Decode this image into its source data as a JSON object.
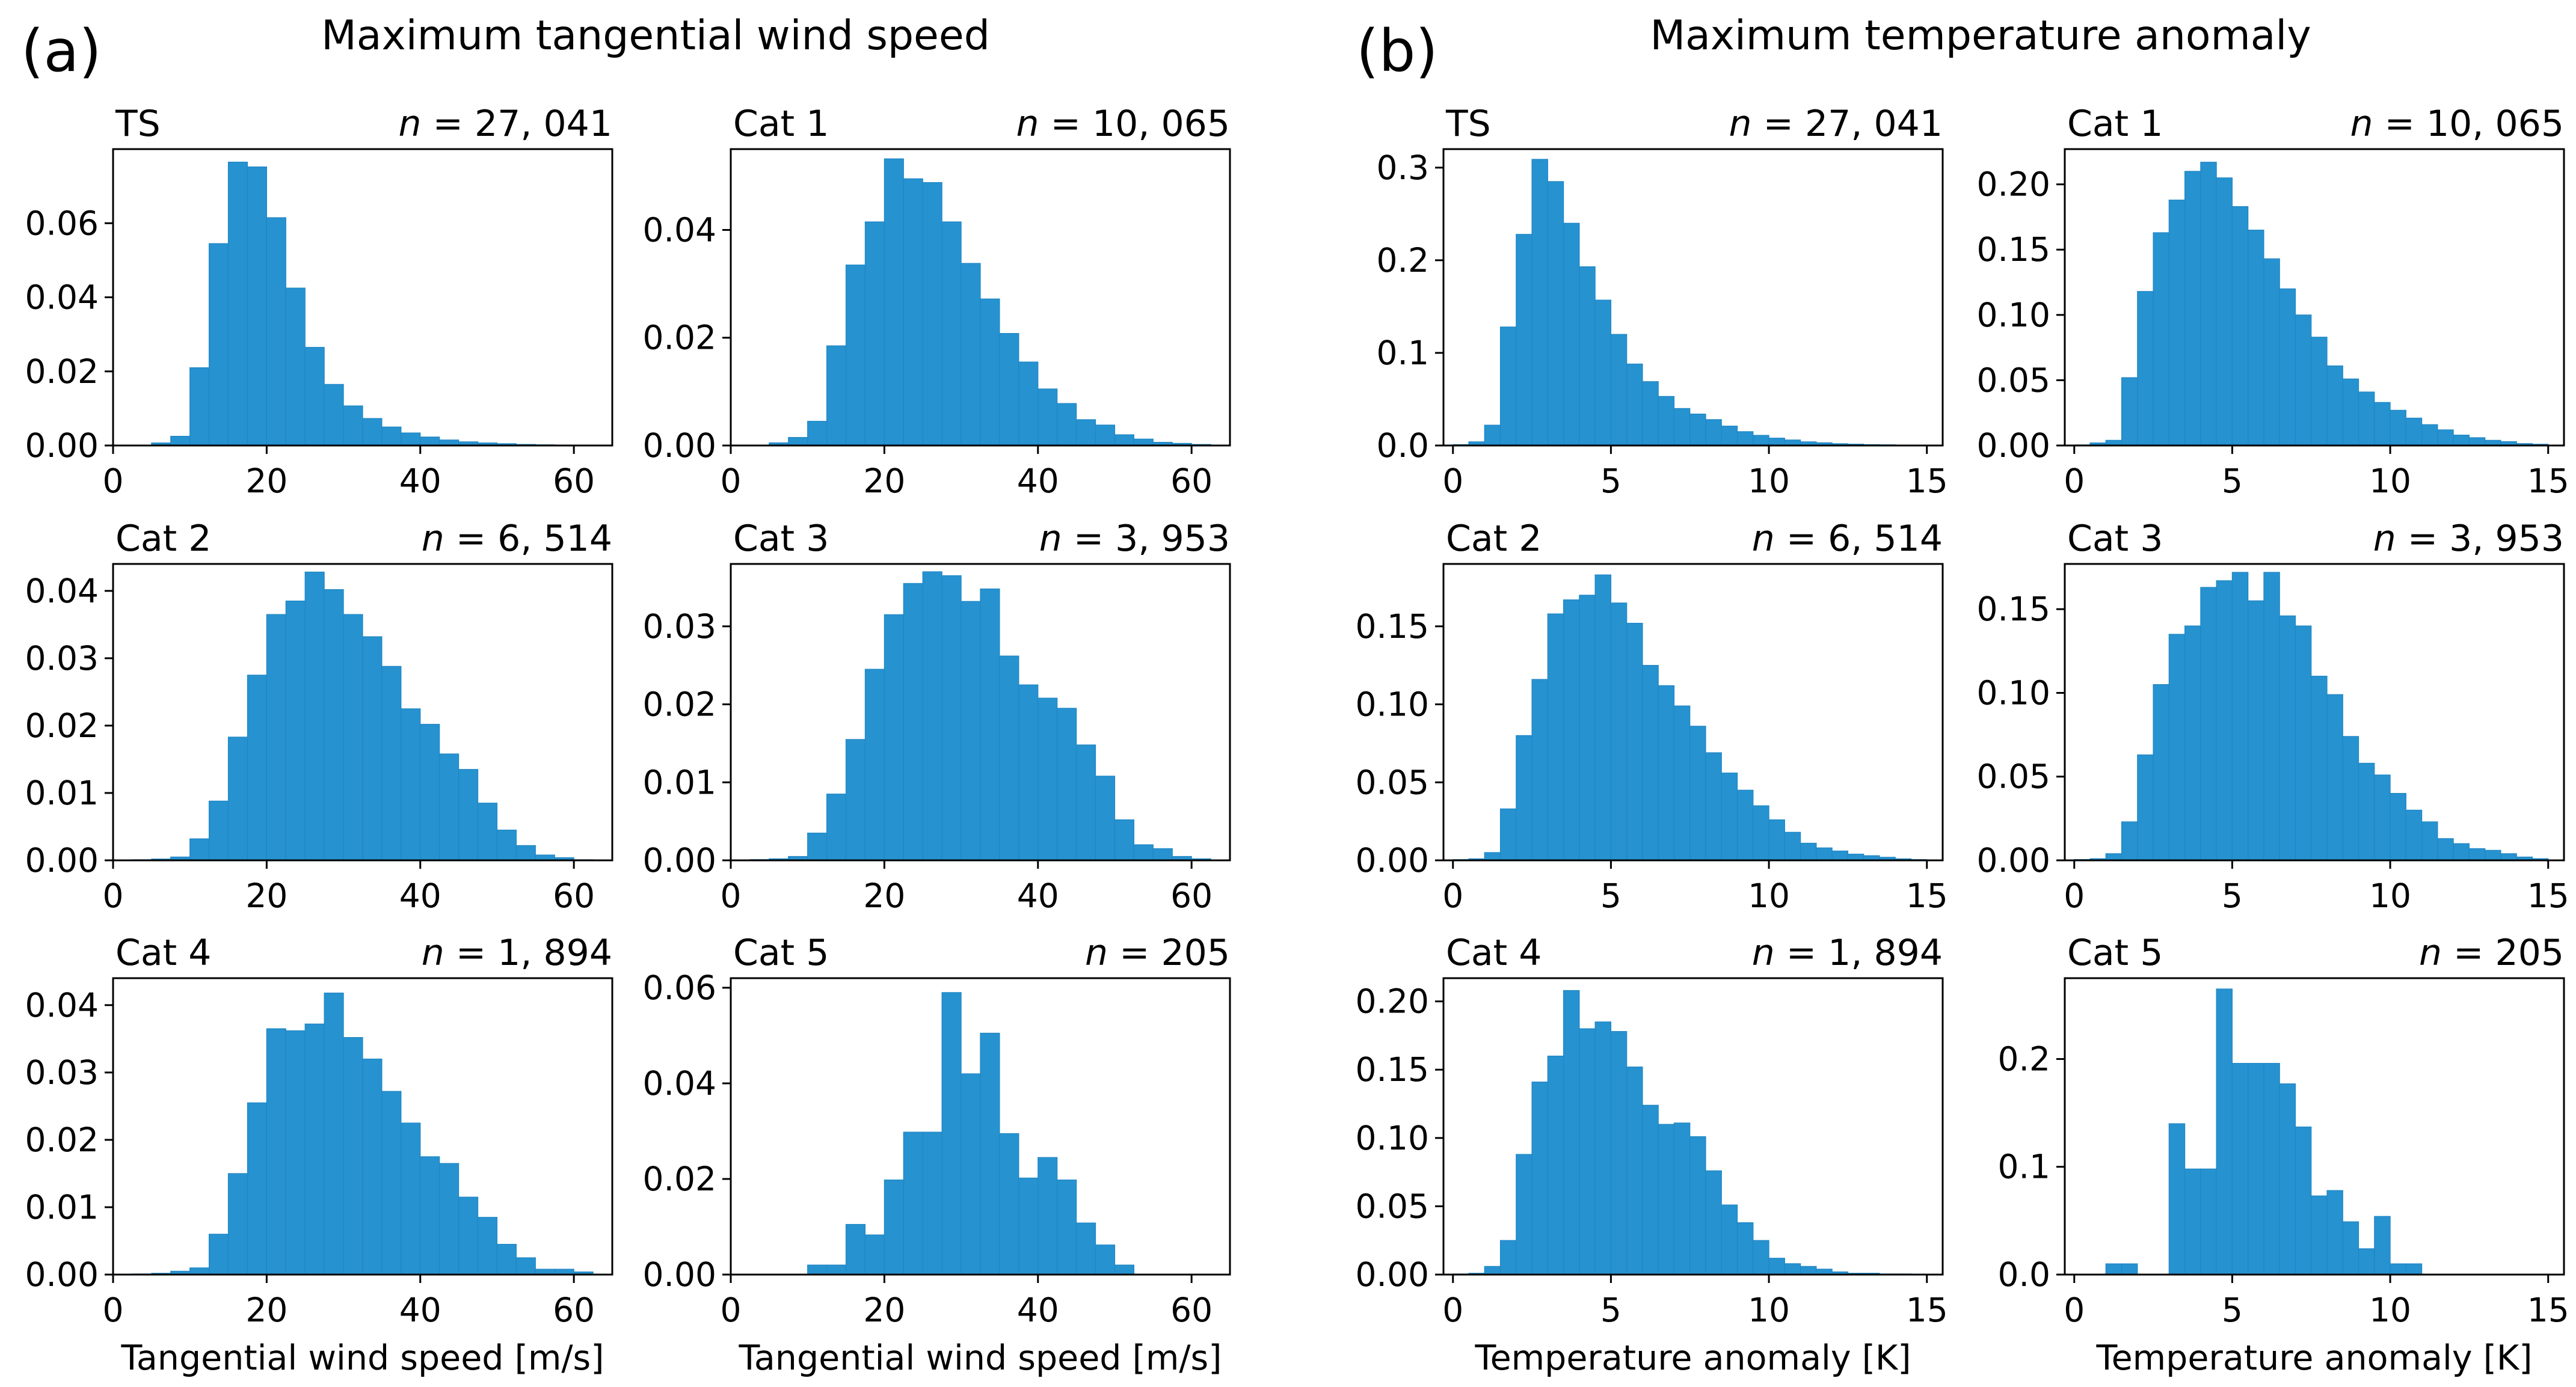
{
  "figure": {
    "groups": [
      {
        "letter": "(a)",
        "title": "Maximum tangential wind speed"
      },
      {
        "letter": "(b)",
        "title": "Maximum temperature anomaly"
      }
    ]
  },
  "chart_data": [
    {
      "type": "bar",
      "group": "(a)",
      "title": "TS",
      "annotation": "n = 27, 041",
      "xlabel": "",
      "ylabel": "",
      "xlim": [
        0,
        65
      ],
      "ylim": [
        0,
        0.08
      ],
      "xticks": [
        0,
        20,
        40,
        60
      ],
      "yticks": [
        0,
        0.02,
        0.04,
        0.06
      ],
      "ytick_labels": [
        "0.00",
        "0.02",
        "0.04",
        "0.06"
      ],
      "bin_edges": [
        2.5,
        5,
        7.5,
        10,
        12.5,
        15,
        17.5,
        20,
        22.5,
        25,
        27.5,
        30,
        32.5,
        35,
        37.5,
        40,
        42.5,
        45,
        47.5,
        50,
        52.5,
        55,
        57.5,
        60,
        62.5
      ],
      "values": [
        0.0001,
        0.0007,
        0.0025,
        0.021,
        0.0545,
        0.0765,
        0.0752,
        0.0615,
        0.0425,
        0.0265,
        0.0165,
        0.0107,
        0.0073,
        0.005,
        0.0034,
        0.0023,
        0.0015,
        0.001,
        0.0007,
        0.0005,
        0.0003,
        0.0002,
        0.0001,
        0.0001
      ],
      "color": "#2792d0"
    },
    {
      "type": "bar",
      "group": "(a)",
      "title": "Cat 1",
      "annotation": "n = 10, 065",
      "xlabel": "",
      "ylabel": "",
      "xlim": [
        0,
        65
      ],
      "ylim": [
        0,
        0.055
      ],
      "xticks": [
        0,
        20,
        40,
        60
      ],
      "yticks": [
        0,
        0.02,
        0.04
      ],
      "ytick_labels": [
        "0.00",
        "0.02",
        "0.04"
      ],
      "bin_edges": [
        2.5,
        5,
        7.5,
        10,
        12.5,
        15,
        17.5,
        20,
        22.5,
        25,
        27.5,
        30,
        32.5,
        35,
        37.5,
        40,
        42.5,
        45,
        47.5,
        50,
        52.5,
        55,
        57.5,
        60,
        62.5
      ],
      "values": [
        0.0001,
        0.0005,
        0.0015,
        0.0045,
        0.0185,
        0.0335,
        0.0415,
        0.0532,
        0.0495,
        0.0488,
        0.0415,
        0.0338,
        0.0272,
        0.0208,
        0.0155,
        0.0105,
        0.0078,
        0.0048,
        0.0038,
        0.002,
        0.0012,
        0.0006,
        0.0004,
        0.0002
      ],
      "color": "#2792d0"
    },
    {
      "type": "bar",
      "group": "(a)",
      "title": "Cat 2",
      "annotation": "n = 6, 514",
      "xlabel": "",
      "ylabel": "",
      "xlim": [
        0,
        65
      ],
      "ylim": [
        0,
        0.044
      ],
      "xticks": [
        0,
        20,
        40,
        60
      ],
      "yticks": [
        0,
        0.01,
        0.02,
        0.03,
        0.04
      ],
      "ytick_labels": [
        "0.00",
        "0.01",
        "0.02",
        "0.03",
        "0.04"
      ],
      "bin_edges": [
        2.5,
        5,
        7.5,
        10,
        12.5,
        15,
        17.5,
        20,
        22.5,
        25,
        27.5,
        30,
        32.5,
        35,
        37.5,
        40,
        42.5,
        45,
        47.5,
        50,
        52.5,
        55,
        57.5,
        60,
        62.5
      ],
      "values": [
        0.0001,
        0.0002,
        0.0005,
        0.0032,
        0.0088,
        0.0183,
        0.0275,
        0.0365,
        0.0385,
        0.0428,
        0.0402,
        0.0365,
        0.0332,
        0.0288,
        0.0225,
        0.0202,
        0.0158,
        0.0135,
        0.0085,
        0.0045,
        0.0022,
        0.0008,
        0.0004,
        0.0001
      ],
      "color": "#2792d0"
    },
    {
      "type": "bar",
      "group": "(a)",
      "title": "Cat 3",
      "annotation": "n = 3, 953",
      "xlabel": "",
      "ylabel": "",
      "xlim": [
        0,
        65
      ],
      "ylim": [
        0,
        0.038
      ],
      "xticks": [
        0,
        20,
        40,
        60
      ],
      "yticks": [
        0,
        0.01,
        0.02,
        0.03
      ],
      "ytick_labels": [
        "0.00",
        "0.01",
        "0.02",
        "0.03"
      ],
      "bin_edges": [
        2.5,
        5,
        7.5,
        10,
        12.5,
        15,
        17.5,
        20,
        22.5,
        25,
        27.5,
        30,
        32.5,
        35,
        37.5,
        40,
        42.5,
        45,
        47.5,
        50,
        52.5,
        55,
        57.5,
        60,
        62.5
      ],
      "values": [
        0.0001,
        0.0002,
        0.0005,
        0.0035,
        0.0085,
        0.0155,
        0.0245,
        0.0315,
        0.0355,
        0.037,
        0.0365,
        0.0332,
        0.0348,
        0.0262,
        0.0225,
        0.0208,
        0.0195,
        0.0148,
        0.0108,
        0.0052,
        0.002,
        0.0015,
        0.0005,
        0.0002
      ],
      "color": "#2792d0"
    },
    {
      "type": "bar",
      "group": "(a)",
      "title": "Cat 4",
      "annotation": "n = 1, 894",
      "xlabel": "Tangential wind speed [m/s]",
      "ylabel": "",
      "xlim": [
        0,
        65
      ],
      "ylim": [
        0,
        0.044
      ],
      "xticks": [
        0,
        20,
        40,
        60
      ],
      "yticks": [
        0,
        0.01,
        0.02,
        0.03,
        0.04
      ],
      "ytick_labels": [
        "0.00",
        "0.01",
        "0.02",
        "0.03",
        "0.04"
      ],
      "bin_edges": [
        2.5,
        5,
        7.5,
        10,
        12.5,
        15,
        17.5,
        20,
        22.5,
        25,
        27.5,
        30,
        32.5,
        35,
        37.5,
        40,
        42.5,
        45,
        47.5,
        50,
        52.5,
        55,
        57.5,
        60,
        62.5
      ],
      "values": [
        0.0001,
        0.0002,
        0.0005,
        0.001,
        0.006,
        0.015,
        0.0255,
        0.0365,
        0.0362,
        0.0372,
        0.0418,
        0.0352,
        0.032,
        0.0272,
        0.0225,
        0.0175,
        0.0165,
        0.0115,
        0.0085,
        0.0045,
        0.0025,
        0.0008,
        0.0008,
        0.0004
      ],
      "color": "#2792d0"
    },
    {
      "type": "bar",
      "group": "(a)",
      "title": "Cat 5",
      "annotation": "n = 205",
      "xlabel": "Tangential wind speed [m/s]",
      "ylabel": "",
      "xlim": [
        0,
        65
      ],
      "ylim": [
        0,
        0.062
      ],
      "xticks": [
        0,
        20,
        40,
        60
      ],
      "yticks": [
        0,
        0.02,
        0.04,
        0.06
      ],
      "ytick_labels": [
        "0.00",
        "0.02",
        "0.04",
        "0.06"
      ],
      "bin_edges": [
        2.5,
        5,
        7.5,
        10,
        12.5,
        15,
        17.5,
        20,
        22.5,
        25,
        27.5,
        30,
        32.5,
        35,
        37.5,
        40,
        42.5,
        45,
        47.5,
        50,
        52.5,
        55,
        57.5,
        60,
        62.5
      ],
      "values": [
        0,
        0,
        0,
        0.002,
        0.002,
        0.0105,
        0.0083,
        0.0198,
        0.0298,
        0.0298,
        0.059,
        0.042,
        0.0505,
        0.0295,
        0.0202,
        0.0245,
        0.0198,
        0.0108,
        0.0062,
        0.002,
        0,
        0,
        0,
        0
      ],
      "color": "#2792d0"
    },
    {
      "type": "bar",
      "group": "(b)",
      "title": "TS",
      "annotation": "n = 27, 041",
      "xlabel": "",
      "ylabel": "",
      "xlim": [
        -0.3,
        15.5
      ],
      "ylim": [
        0,
        0.32
      ],
      "xticks": [
        0,
        5,
        10,
        15
      ],
      "yticks": [
        0,
        0.1,
        0.2,
        0.3
      ],
      "ytick_labels": [
        "0.0",
        "0.1",
        "0.2",
        "0.3"
      ],
      "bin_edges": [
        0,
        0.5,
        1,
        1.5,
        2,
        2.5,
        3,
        3.5,
        4,
        4.5,
        5,
        5.5,
        6,
        6.5,
        7,
        7.5,
        8,
        8.5,
        9,
        9.5,
        10,
        10.5,
        11,
        11.5,
        12,
        12.5,
        13,
        13.5,
        14,
        14.5,
        15
      ],
      "values": [
        0.001,
        0.004,
        0.022,
        0.128,
        0.228,
        0.309,
        0.285,
        0.24,
        0.193,
        0.157,
        0.12,
        0.088,
        0.069,
        0.053,
        0.04,
        0.034,
        0.028,
        0.021,
        0.015,
        0.011,
        0.008,
        0.006,
        0.004,
        0.003,
        0.002,
        0.0015,
        0.001,
        0.0008,
        0.0005,
        0.0003
      ],
      "color": "#2792d0"
    },
    {
      "type": "bar",
      "group": "(b)",
      "title": "Cat 1",
      "annotation": "n = 10, 065",
      "xlabel": "",
      "ylabel": "",
      "xlim": [
        -0.3,
        15.5
      ],
      "ylim": [
        0,
        0.227
      ],
      "xticks": [
        0,
        5,
        10,
        15
      ],
      "yticks": [
        0,
        0.05,
        0.1,
        0.15,
        0.2
      ],
      "ytick_labels": [
        "0.00",
        "0.05",
        "0.10",
        "0.15",
        "0.20"
      ],
      "bin_edges": [
        0,
        0.5,
        1,
        1.5,
        2,
        2.5,
        3,
        3.5,
        4,
        4.5,
        5,
        5.5,
        6,
        6.5,
        7,
        7.5,
        8,
        8.5,
        9,
        9.5,
        10,
        10.5,
        11,
        11.5,
        12,
        12.5,
        13,
        13.5,
        14,
        14.5,
        15
      ],
      "values": [
        0.0005,
        0.002,
        0.004,
        0.052,
        0.118,
        0.163,
        0.188,
        0.21,
        0.217,
        0.205,
        0.183,
        0.165,
        0.143,
        0.12,
        0.1,
        0.083,
        0.061,
        0.051,
        0.041,
        0.033,
        0.027,
        0.021,
        0.016,
        0.012,
        0.008,
        0.006,
        0.004,
        0.003,
        0.0015,
        0.001
      ],
      "color": "#2792d0"
    },
    {
      "type": "bar",
      "group": "(b)",
      "title": "Cat 2",
      "annotation": "n = 6, 514",
      "xlabel": "",
      "ylabel": "",
      "xlim": [
        -0.3,
        15.5
      ],
      "ylim": [
        0,
        0.19
      ],
      "xticks": [
        0,
        5,
        10,
        15
      ],
      "yticks": [
        0,
        0.05,
        0.1,
        0.15
      ],
      "ytick_labels": [
        "0.00",
        "0.05",
        "0.10",
        "0.15"
      ],
      "bin_edges": [
        0,
        0.5,
        1,
        1.5,
        2,
        2.5,
        3,
        3.5,
        4,
        4.5,
        5,
        5.5,
        6,
        6.5,
        7,
        7.5,
        8,
        8.5,
        9,
        9.5,
        10,
        10.5,
        11,
        11.5,
        12,
        12.5,
        13,
        13.5,
        14,
        14.5,
        15
      ],
      "values": [
        0.0005,
        0.001,
        0.005,
        0.033,
        0.08,
        0.116,
        0.158,
        0.167,
        0.17,
        0.183,
        0.165,
        0.152,
        0.125,
        0.112,
        0.099,
        0.086,
        0.069,
        0.056,
        0.045,
        0.035,
        0.026,
        0.018,
        0.011,
        0.008,
        0.006,
        0.004,
        0.003,
        0.002,
        0.001,
        0.0005
      ],
      "color": "#2792d0"
    },
    {
      "type": "bar",
      "group": "(b)",
      "title": "Cat 3",
      "annotation": "n = 3, 953",
      "xlabel": "",
      "ylabel": "",
      "xlim": [
        -0.3,
        15.5
      ],
      "ylim": [
        0,
        0.177
      ],
      "xticks": [
        0,
        5,
        10,
        15
      ],
      "yticks": [
        0,
        0.05,
        0.1,
        0.15
      ],
      "ytick_labels": [
        "0.00",
        "0.05",
        "0.10",
        "0.15"
      ],
      "bin_edges": [
        0,
        0.5,
        1,
        1.5,
        2,
        2.5,
        3,
        3.5,
        4,
        4.5,
        5,
        5.5,
        6,
        6.5,
        7,
        7.5,
        8,
        8.5,
        9,
        9.5,
        10,
        10.5,
        11,
        11.5,
        12,
        12.5,
        13,
        13.5,
        14,
        14.5,
        15
      ],
      "values": [
        0.0005,
        0.001,
        0.004,
        0.023,
        0.063,
        0.105,
        0.135,
        0.14,
        0.163,
        0.167,
        0.172,
        0.155,
        0.172,
        0.146,
        0.14,
        0.11,
        0.099,
        0.074,
        0.058,
        0.051,
        0.04,
        0.03,
        0.023,
        0.013,
        0.01,
        0.007,
        0.006,
        0.004,
        0.002,
        0.001
      ],
      "color": "#2792d0"
    },
    {
      "type": "bar",
      "group": "(b)",
      "title": "Cat 4",
      "annotation": "n = 1, 894",
      "xlabel": "Temperature anomaly [K]",
      "ylabel": "",
      "xlim": [
        -0.3,
        15.5
      ],
      "ylim": [
        0,
        0.217
      ],
      "xticks": [
        0,
        5,
        10,
        15
      ],
      "yticks": [
        0,
        0.05,
        0.1,
        0.15,
        0.2
      ],
      "ytick_labels": [
        "0.00",
        "0.05",
        "0.10",
        "0.15",
        "0.20"
      ],
      "bin_edges": [
        0,
        0.5,
        1,
        1.5,
        2,
        2.5,
        3,
        3.5,
        4,
        4.5,
        5,
        5.5,
        6,
        6.5,
        7,
        7.5,
        8,
        8.5,
        9,
        9.5,
        10,
        10.5,
        11,
        11.5,
        12,
        12.5,
        13,
        13.5,
        14,
        14.5,
        15
      ],
      "values": [
        0.0005,
        0.001,
        0.006,
        0.025,
        0.088,
        0.141,
        0.16,
        0.208,
        0.18,
        0.185,
        0.178,
        0.152,
        0.124,
        0.11,
        0.111,
        0.101,
        0.076,
        0.051,
        0.038,
        0.025,
        0.012,
        0.008,
        0.006,
        0.004,
        0.002,
        0.001,
        0.001,
        0.0005,
        0.0005,
        0.0002
      ],
      "color": "#2792d0"
    },
    {
      "type": "bar",
      "group": "(b)",
      "title": "Cat 5",
      "annotation": "n = 205",
      "xlabel": "Temperature anomaly [K]",
      "ylabel": "",
      "xlim": [
        -0.3,
        15.5
      ],
      "ylim": [
        0,
        0.275
      ],
      "xticks": [
        0,
        5,
        10,
        15
      ],
      "yticks": [
        0,
        0.1,
        0.2
      ],
      "ytick_labels": [
        "0.0",
        "0.1",
        "0.2"
      ],
      "bin_edges": [
        1,
        1.5,
        2,
        2.5,
        3,
        3.5,
        4,
        4.5,
        5,
        5.5,
        6,
        6.5,
        7,
        7.5,
        8,
        8.5,
        9,
        9.5,
        10,
        10.5,
        11
      ],
      "values": [
        0.01,
        0.01,
        0.0,
        0.0,
        0.14,
        0.098,
        0.098,
        0.265,
        0.196,
        0.196,
        0.196,
        0.177,
        0.137,
        0.073,
        0.078,
        0.049,
        0.024,
        0.054,
        0.01,
        0.01
      ],
      "color": "#2792d0"
    }
  ]
}
